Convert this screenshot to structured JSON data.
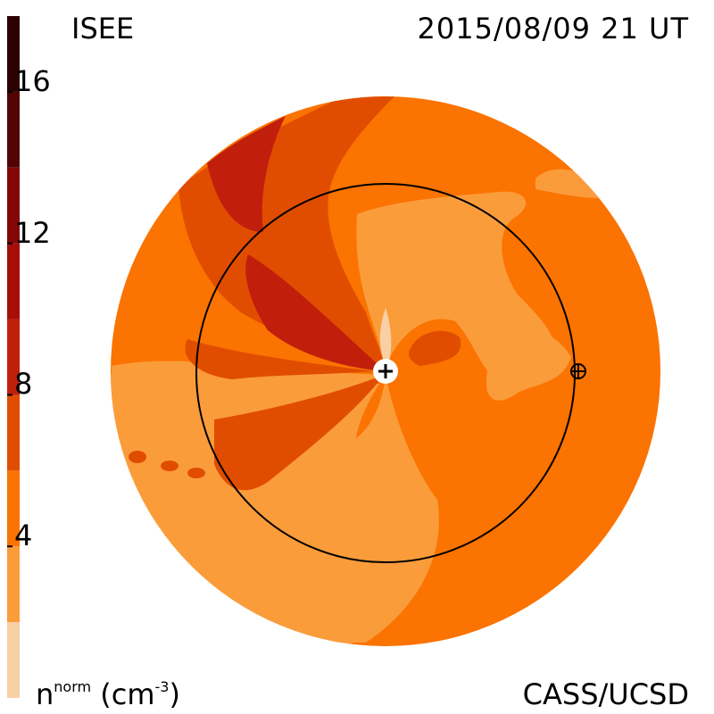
{
  "header": {
    "source": "ISEE",
    "datetime": "2015/08/09 21 UT"
  },
  "footer": {
    "credit": "CASS/UCSD",
    "units_base": "n",
    "units_sup": "norm",
    "units_paren_open": "(cm",
    "units_exp": "-3",
    "units_paren_close": ")"
  },
  "colorbar": {
    "tick_labels": [
      "16",
      "12",
      "8",
      "4"
    ],
    "tick_values": [
      16,
      12,
      8,
      4
    ],
    "range": [
      0,
      18
    ],
    "levels": [
      {
        "from": 0,
        "to": 2,
        "color": "#f9cfa6"
      },
      {
        "from": 2,
        "to": 4,
        "color": "#fb9c3b"
      },
      {
        "from": 4,
        "to": 6,
        "color": "#fb7300"
      },
      {
        "from": 6,
        "to": 8,
        "color": "#e14d00"
      },
      {
        "from": 8,
        "to": 10,
        "color": "#c11f0c"
      },
      {
        "from": 10,
        "to": 12,
        "color": "#a80e0a"
      },
      {
        "from": 12,
        "to": 14,
        "color": "#830707"
      },
      {
        "from": 14,
        "to": 16,
        "color": "#520404"
      },
      {
        "from": 16,
        "to": 18,
        "color": "#2b0101"
      }
    ]
  },
  "markers": {
    "sun": "sun-plus-symbol",
    "earth": "earth-circle-plus-symbol"
  }
}
